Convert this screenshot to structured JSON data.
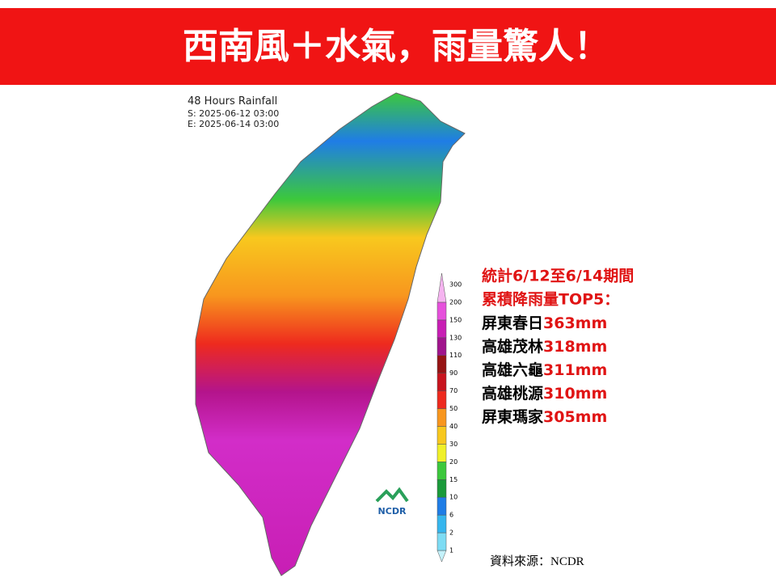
{
  "header": {
    "title": "西南風＋水氣，雨量驚人！"
  },
  "map": {
    "title": "48 Hours Rainfall",
    "start": "S: 2025-06-12 03:00",
    "end": "E: 2025-06-14 03:00",
    "logo": "NCDR"
  },
  "legend": {
    "levels": [
      {
        "label": "1",
        "color": "#c4f2fb"
      },
      {
        "label": "2",
        "color": "#7ddcf4"
      },
      {
        "label": "6",
        "color": "#36b6ee"
      },
      {
        "label": "10",
        "color": "#1f7de6"
      },
      {
        "label": "15",
        "color": "#1a9a3a"
      },
      {
        "label": "20",
        "color": "#3cc83c"
      },
      {
        "label": "30",
        "color": "#f0f028"
      },
      {
        "label": "40",
        "color": "#f8c81e"
      },
      {
        "label": "50",
        "color": "#f8961e"
      },
      {
        "label": "70",
        "color": "#ee2a1e"
      },
      {
        "label": "90",
        "color": "#c8141e"
      },
      {
        "label": "110",
        "color": "#961414"
      },
      {
        "label": "130",
        "color": "#a0148c"
      },
      {
        "label": "150",
        "color": "#c81eb4"
      },
      {
        "label": "200",
        "color": "#e650dc"
      },
      {
        "label": "300",
        "color": "#f5b4f0"
      }
    ]
  },
  "stats": {
    "heading": [
      "統計6/12至6/14期間",
      "累積降雨量TOP5："
    ],
    "top5": [
      {
        "place": "屏東春日",
        "amount": "363mm"
      },
      {
        "place": "高雄茂林",
        "amount": "318mm"
      },
      {
        "place": "高雄六龜",
        "amount": "311mm"
      },
      {
        "place": "高雄桃源",
        "amount": "310mm"
      },
      {
        "place": "屏東瑪家",
        "amount": "305mm"
      }
    ]
  },
  "source": {
    "label": "資料來源：",
    "name": "NCDR"
  }
}
